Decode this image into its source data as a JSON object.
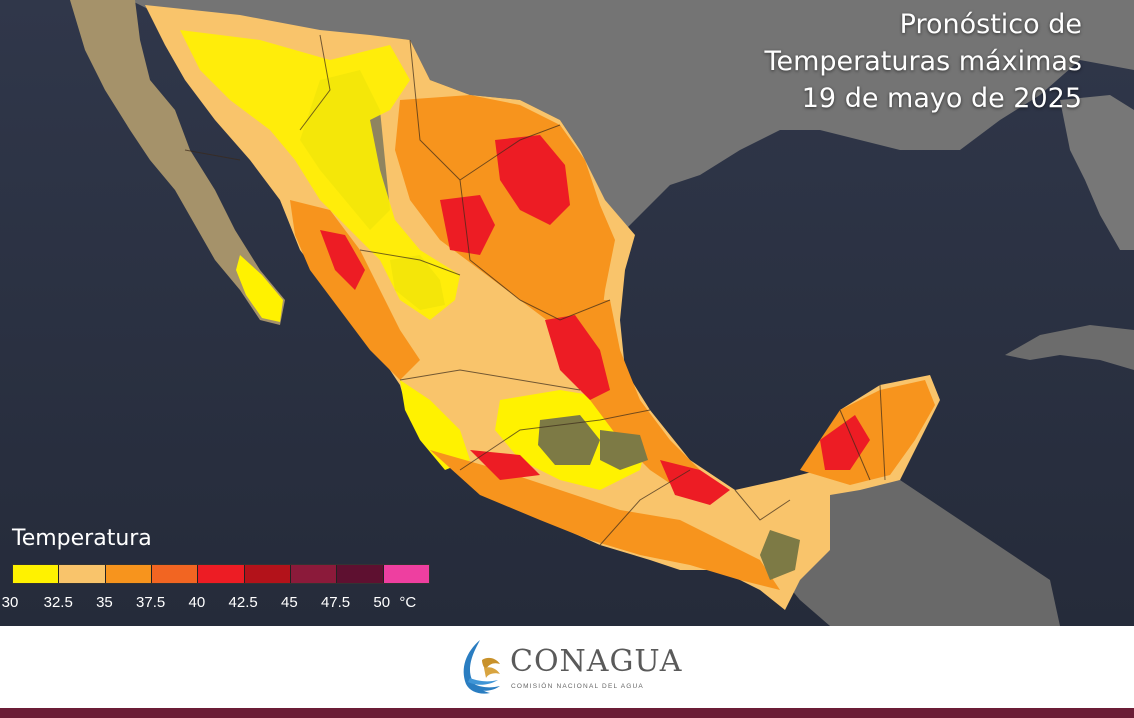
{
  "title": {
    "line1": "Pronóstico de",
    "line2": "Temperaturas máximas",
    "line3": "19 de mayo de 2025"
  },
  "legend": {
    "title": "Temperatura",
    "unit": "°C",
    "ticks": [
      "30",
      "32.5",
      "35",
      "37.5",
      "40",
      "42.5",
      "45",
      "47.5",
      "50"
    ],
    "colors": [
      "#fff200",
      "#f9c46b",
      "#f7941d",
      "#f26522",
      "#ed1c24",
      "#b3121a",
      "#8b1a3a",
      "#5e1030",
      "#ee3fa0"
    ]
  },
  "map": {
    "ocean_color": "#2a3040",
    "land_color": "#6e6e6e",
    "desert_color": "#9a8a62"
  },
  "footer": {
    "logo_name": "CONAGUA",
    "logo_subtitle": "COMISIÓN NACIONAL DEL AGUA",
    "logo_icon": "conagua-wave-icon",
    "bar_color": "#6b1d36"
  }
}
